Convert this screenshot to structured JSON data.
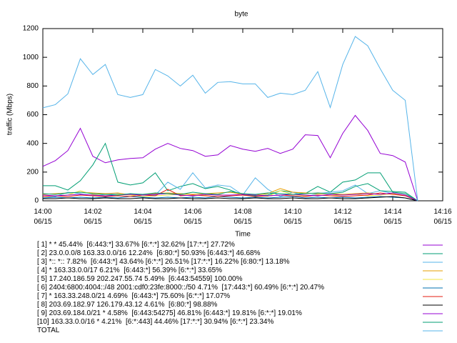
{
  "chart_data": {
    "type": "line",
    "title": "byte",
    "xlabel": "Time",
    "ylabel": "traffic (Mbps)",
    "x": [
      0,
      0.5,
      1,
      1.5,
      2,
      2.5,
      3,
      3.5,
      4,
      4.5,
      5,
      5.5,
      6,
      6.5,
      7,
      7.5,
      8,
      8.5,
      9,
      9.5,
      10,
      10.5,
      11,
      11.5,
      12,
      12.5,
      13,
      13.5,
      14,
      14.5,
      15
    ],
    "xlim": [
      0,
      16
    ],
    "xticks": [
      {
        "value": 0,
        "label": "14:00\n06/15"
      },
      {
        "value": 2,
        "label": "14:02\n06/15"
      },
      {
        "value": 4,
        "label": "14:04\n06/15"
      },
      {
        "value": 6,
        "label": "14:06\n06/15"
      },
      {
        "value": 8,
        "label": "14:08\n06/15"
      },
      {
        "value": 10,
        "label": "14:10\n06/15"
      },
      {
        "value": 12,
        "label": "14:12\n06/15"
      },
      {
        "value": 14,
        "label": "14:14\n06/15"
      },
      {
        "value": 16,
        "label": "14:16\n06/15"
      }
    ],
    "ylim": [
      0,
      1200
    ],
    "yticks": [
      0,
      200,
      400,
      600,
      800,
      1000,
      1200
    ],
    "series": [
      {
        "name": "[ 1] * * 45.44%  [6:443:*] 33.67% [6:*:*] 32.62% [17:*:*] 27.72%",
        "color": "#9400d3",
        "values": [
          240,
          280,
          350,
          505,
          310,
          265,
          285,
          295,
          300,
          360,
          400,
          365,
          350,
          310,
          320,
          385,
          360,
          345,
          365,
          330,
          360,
          460,
          455,
          300,
          470,
          595,
          490,
          330,
          315,
          270,
          0
        ]
      },
      {
        "name": "[ 2] 23.0.0.0/8 163.33.0.0/16 12.24%  [6:80:*] 50.93% [6:443:*] 46.68%",
        "color": "#009e73",
        "values": [
          105,
          105,
          75,
          140,
          250,
          400,
          130,
          110,
          125,
          195,
          70,
          100,
          120,
          85,
          100,
          75,
          40,
          35,
          40,
          70,
          60,
          50,
          100,
          60,
          130,
          145,
          195,
          195,
          60,
          50,
          0
        ]
      },
      {
        "name": "[ 3] *:: *:: 7.82%  [6:443:*] 43.64% [6:*:*] 26.51% [17:*:*] 16.22% [6:80:*] 13.18%",
        "color": "#56b4e9",
        "values": [
          30,
          30,
          60,
          50,
          35,
          45,
          50,
          45,
          40,
          40,
          130,
          80,
          195,
          90,
          110,
          100,
          40,
          160,
          80,
          30,
          60,
          30,
          50,
          60,
          70,
          110,
          50,
          70,
          50,
          40,
          0
        ]
      },
      {
        "name": "[ 4] * 163.33.0.0/17 6.21%  [6:443:*] 56.39% [6:*:*] 33.65%",
        "color": "#e69f00",
        "values": [
          45,
          50,
          55,
          60,
          55,
          50,
          55,
          40,
          45,
          50,
          55,
          50,
          45,
          50,
          55,
          60,
          45,
          40,
          50,
          85,
          60,
          55,
          50,
          50,
          45,
          50,
          55,
          45,
          50,
          40,
          0
        ]
      },
      {
        "name": "[ 5] 17.240.186.59 202.247.55.74 5.49%  [6:443:54559] 100.00%",
        "color": "#f0e442",
        "values": [
          30,
          35,
          40,
          70,
          45,
          35,
          45,
          40,
          30,
          35,
          40,
          45,
          35,
          40,
          45,
          35,
          50,
          40,
          30,
          70,
          45,
          35,
          40,
          35,
          40,
          45,
          35,
          40,
          50,
          40,
          0
        ]
      },
      {
        "name": "[ 6] 2404:6800:4004::/48 2001:cdf0:23fe:8000::/50 4.71%  [17:443:*] 60.49% [6:*:*] 20.47%",
        "color": "#0072b2",
        "values": [
          20,
          25,
          20,
          25,
          20,
          25,
          20,
          30,
          25,
          20,
          25,
          20,
          25,
          20,
          30,
          25,
          20,
          25,
          20,
          25,
          30,
          20,
          25,
          20,
          25,
          20,
          25,
          30,
          25,
          20,
          0
        ]
      },
      {
        "name": "[ 7] * 163.33.248.0/21 4.69%  [6:443:*] 75.60% [6:*:*] 17.07%",
        "color": "#e51e10",
        "values": [
          30,
          35,
          30,
          40,
          35,
          30,
          35,
          30,
          40,
          35,
          80,
          35,
          40,
          35,
          30,
          35,
          40,
          30,
          35,
          40,
          35,
          30,
          40,
          35,
          30,
          35,
          40,
          55,
          45,
          35,
          0
        ]
      },
      {
        "name": "[ 8] 203.69.182.97 126.179.43.12 4.61%  [6:80:*] 98.88%",
        "color": "#000000",
        "values": [
          15,
          15,
          20,
          15,
          15,
          20,
          15,
          15,
          20,
          15,
          15,
          20,
          15,
          15,
          20,
          15,
          15,
          20,
          15,
          15,
          20,
          15,
          15,
          20,
          15,
          15,
          20,
          25,
          30,
          20,
          0
        ]
      },
      {
        "name": "[ 9] 203.69.184.0/21 * 4.58%  [6:443:54275] 46.81% [6:443:*] 19.81% [6:*:*] 19.01%",
        "color": "#9400d3",
        "values": [
          40,
          35,
          40,
          45,
          40,
          35,
          40,
          45,
          40,
          45,
          50,
          40,
          35,
          45,
          40,
          40,
          45,
          40,
          35,
          40,
          45,
          40,
          35,
          45,
          40,
          45,
          50,
          45,
          55,
          40,
          0
        ]
      },
      {
        "name": "[10] 163.33.0.0/16 * 4.21%  [6:*:443] 44.46% [17:*:*] 30.94% [6:*:*] 23.34%",
        "color": "#009e73",
        "values": [
          50,
          45,
          55,
          60,
          50,
          45,
          40,
          50,
          45,
          55,
          50,
          45,
          60,
          50,
          45,
          65,
          50,
          45,
          55,
          50,
          45,
          50,
          55,
          50,
          60,
          100,
          120,
          70,
          65,
          60,
          0
        ]
      },
      {
        "name": "TOTAL",
        "color": "#56b4e9",
        "values": [
          648,
          670,
          745,
          990,
          880,
          950,
          740,
          720,
          740,
          915,
          870,
          800,
          875,
          750,
          825,
          830,
          815,
          815,
          720,
          750,
          740,
          770,
          900,
          650,
          950,
          1145,
          1080,
          920,
          770,
          700,
          0
        ]
      }
    ]
  }
}
